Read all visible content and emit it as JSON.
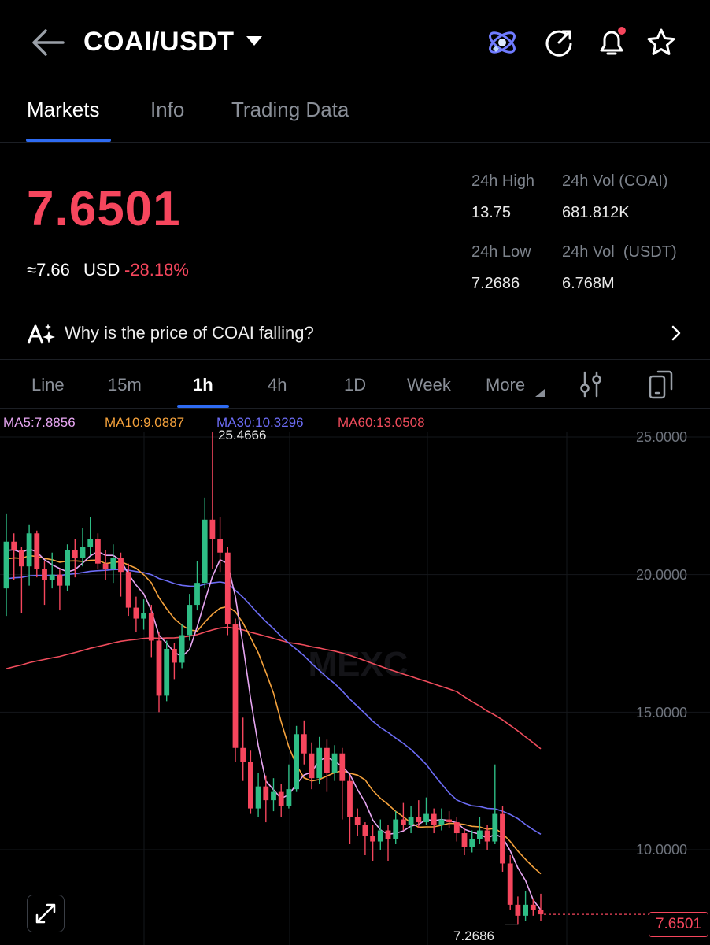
{
  "header": {
    "pair": "COAI/USDT"
  },
  "tabs": [
    {
      "label": "Markets"
    },
    {
      "label": "Info"
    },
    {
      "label": "Trading Data"
    }
  ],
  "ticker": {
    "price": "7.6501",
    "approx": "≈7.66",
    "currency": "USD",
    "change": "-28.18%",
    "high_label": "24h High",
    "high": "13.75",
    "vol_coai_label": "24h Vol (COAI)",
    "vol_coai": "681.812K",
    "low_label": "24h Low",
    "low": "7.2686",
    "vol_usdt_label": "24h Vol  (USDT)",
    "vol_usdt": "6.768M"
  },
  "banner": {
    "text": "Why is the price of COAI falling?"
  },
  "timeframes": [
    "Line",
    "15m",
    "1h",
    "4h",
    "1D",
    "Week",
    "More"
  ],
  "ma_legend": {
    "ma5": "MA5:7.8856",
    "ma10": "MA10:9.0887",
    "ma30": "MA30:10.3296",
    "ma60": "MA60:13.0508"
  },
  "colors": {
    "up": "#2ebd85",
    "down": "#f6465d",
    "accent": "#2e6bf2",
    "ma5": "#e7a6f2",
    "ma10": "#f5a23c",
    "ma30": "#6c6cf5",
    "ma60": "#f04c5c"
  },
  "chart_data": {
    "type": "candlestick",
    "interval": "1h",
    "y_ticks": [
      "25.0000",
      "20.0000",
      "15.0000",
      "10.0000"
    ],
    "ylim": [
      6.6,
      26.1
    ],
    "high_marker": "25.4666",
    "low_marker": "7.2686",
    "last_price": "7.6501",
    "watermark": "MEXC",
    "candles": [
      [
        19.5,
        21.2,
        22.2,
        18.5
      ],
      [
        21.2,
        20.9,
        21.5,
        19.8
      ],
      [
        20.9,
        20.3,
        21.0,
        18.6
      ],
      [
        20.3,
        21.5,
        21.8,
        19.6
      ],
      [
        21.5,
        20.2,
        21.6,
        19.9
      ],
      [
        20.2,
        19.8,
        20.5,
        18.9
      ],
      [
        19.8,
        20.0,
        20.8,
        19.5
      ],
      [
        20.0,
        19.6,
        20.2,
        18.7
      ],
      [
        19.6,
        20.9,
        21.1,
        19.4
      ],
      [
        20.9,
        20.6,
        21.3,
        19.9
      ],
      [
        20.6,
        21.0,
        21.7,
        20.3
      ],
      [
        21.0,
        21.3,
        22.1,
        20.7
      ],
      [
        21.3,
        20.4,
        21.5,
        20.2
      ],
      [
        20.4,
        20.2,
        20.9,
        19.8
      ],
      [
        20.2,
        20.6,
        21.1,
        19.7
      ],
      [
        20.6,
        20.1,
        20.8,
        19.2
      ],
      [
        20.1,
        18.8,
        20.4,
        18.5
      ],
      [
        18.8,
        18.4,
        19.2,
        17.9
      ],
      [
        18.4,
        18.6,
        19.1,
        18.0
      ],
      [
        18.6,
        17.6,
        18.9,
        17.0
      ],
      [
        17.6,
        15.6,
        17.9,
        15.0
      ],
      [
        15.6,
        17.3,
        17.6,
        15.4
      ],
      [
        17.3,
        16.8,
        17.5,
        16.2
      ],
      [
        16.8,
        17.8,
        18.2,
        16.6
      ],
      [
        17.8,
        18.9,
        19.3,
        17.6
      ],
      [
        18.9,
        19.7,
        20.5,
        18.7
      ],
      [
        19.7,
        22.0,
        22.8,
        19.5
      ],
      [
        22.0,
        21.3,
        25.5,
        20.2
      ],
      [
        21.3,
        20.8,
        22.1,
        20.1
      ],
      [
        20.8,
        18.2,
        21.0,
        17.8
      ],
      [
        18.2,
        13.7,
        18.4,
        13.2
      ],
      [
        13.7,
        13.2,
        14.8,
        12.5
      ],
      [
        13.2,
        11.5,
        13.6,
        11.3
      ],
      [
        11.5,
        12.3,
        12.8,
        11.2
      ],
      [
        12.3,
        11.8,
        12.7,
        11.0
      ],
      [
        11.8,
        12.1,
        12.6,
        11.4
      ],
      [
        12.1,
        11.6,
        12.4,
        11.2
      ],
      [
        11.6,
        12.2,
        13.1,
        11.5
      ],
      [
        12.2,
        14.2,
        14.5,
        12.1
      ],
      [
        14.2,
        13.5,
        14.7,
        13.1
      ],
      [
        13.5,
        12.6,
        13.9,
        12.2
      ],
      [
        12.6,
        13.7,
        14.1,
        12.4
      ],
      [
        13.7,
        12.8,
        14.0,
        12.1
      ],
      [
        12.8,
        13.5,
        13.8,
        12.5
      ],
      [
        13.5,
        12.5,
        13.7,
        11.1
      ],
      [
        12.5,
        11.2,
        12.7,
        10.2
      ],
      [
        11.2,
        10.9,
        11.5,
        10.5
      ],
      [
        10.9,
        10.5,
        11.0,
        9.8
      ],
      [
        10.5,
        10.3,
        10.9,
        9.6
      ],
      [
        10.3,
        10.7,
        11.1,
        10.0
      ],
      [
        10.7,
        10.4,
        10.9,
        9.6
      ],
      [
        10.4,
        11.1,
        11.4,
        10.2
      ],
      [
        11.1,
        10.9,
        11.7,
        10.7
      ],
      [
        10.9,
        11.2,
        11.6,
        10.6
      ],
      [
        11.2,
        11.0,
        11.8,
        10.8
      ],
      [
        11.0,
        11.3,
        11.9,
        10.9
      ],
      [
        11.3,
        10.9,
        11.5,
        10.6
      ],
      [
        10.9,
        11.1,
        11.5,
        10.7
      ],
      [
        11.1,
        11.0,
        11.4,
        10.8
      ],
      [
        11.0,
        10.6,
        11.2,
        10.3
      ],
      [
        10.6,
        10.1,
        10.8,
        9.8
      ],
      [
        10.1,
        10.4,
        10.7,
        9.9
      ],
      [
        10.4,
        10.7,
        11.2,
        10.2
      ],
      [
        10.7,
        10.3,
        10.9,
        10.0
      ],
      [
        10.3,
        11.3,
        13.1,
        10.2
      ],
      [
        11.3,
        9.5,
        11.6,
        9.2
      ],
      [
        9.5,
        8.0,
        9.8,
        7.8
      ],
      [
        8.0,
        7.6,
        8.3,
        7.3
      ],
      [
        7.6,
        8.0,
        8.5,
        7.4
      ],
      [
        8.0,
        7.8,
        8.2,
        7.6
      ],
      [
        7.8,
        7.65,
        8.4,
        7.4
      ]
    ]
  }
}
